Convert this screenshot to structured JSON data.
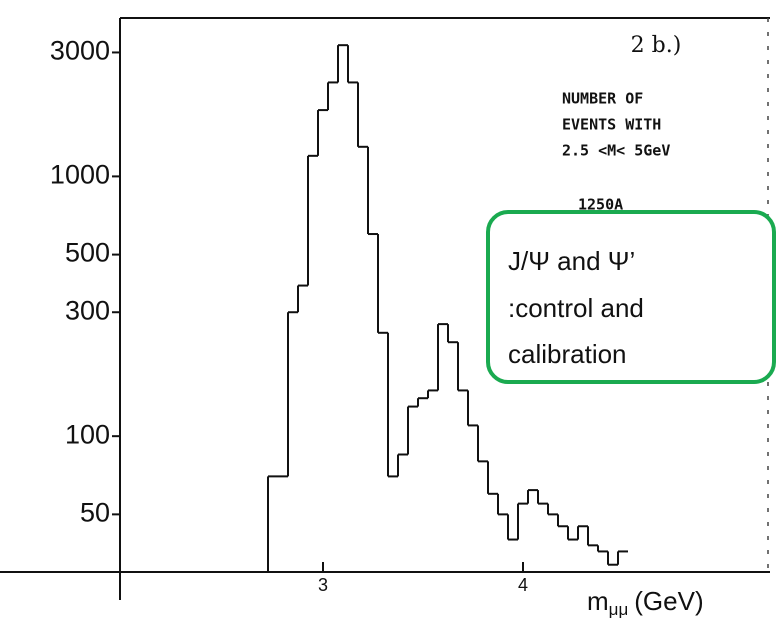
{
  "chart_data": {
    "type": "histogram",
    "panel_label": "2 b.)",
    "annotations": [
      "NUMBER OF",
      "EVENTS WITH",
      "2.5 <M< 5GeV",
      "1250A"
    ],
    "callout": [
      "J/Ψ and Ψ’",
      ":control and",
      "calibration"
    ],
    "x_label": {
      "base": "m",
      "sub": "μμ",
      "unit": "(GeV)"
    },
    "bins": [
      2.725,
      2.825,
      2.875,
      2.925,
      2.975,
      3.025,
      3.075,
      3.125,
      3.175,
      3.225,
      3.275,
      3.325,
      3.375,
      3.425,
      3.475,
      3.525,
      3.575,
      3.625,
      3.675,
      3.725,
      3.775,
      3.825,
      3.875,
      3.925,
      3.975,
      4.025,
      4.075,
      4.125,
      4.175,
      4.225,
      4.275,
      4.325,
      4.375,
      4.425,
      4.475,
      4.525
    ],
    "counts": [
      70,
      300,
      380,
      1200,
      1800,
      2300,
      3200,
      2300,
      1300,
      600,
      250,
      70,
      85,
      130,
      140,
      150,
      270,
      230,
      150,
      110,
      80,
      60,
      50,
      40,
      55,
      62,
      55,
      50,
      45,
      40,
      45,
      38,
      36,
      32,
      36
    ],
    "color": "#111111",
    "log_y": true,
    "xlim": [
      1.4,
      5.2
    ],
    "ylim": [
      30,
      4000
    ],
    "xticks": [
      3,
      4
    ],
    "yticks": [
      50,
      100,
      300,
      500,
      1000,
      3000
    ],
    "callout_color": "#1aaa50"
  }
}
